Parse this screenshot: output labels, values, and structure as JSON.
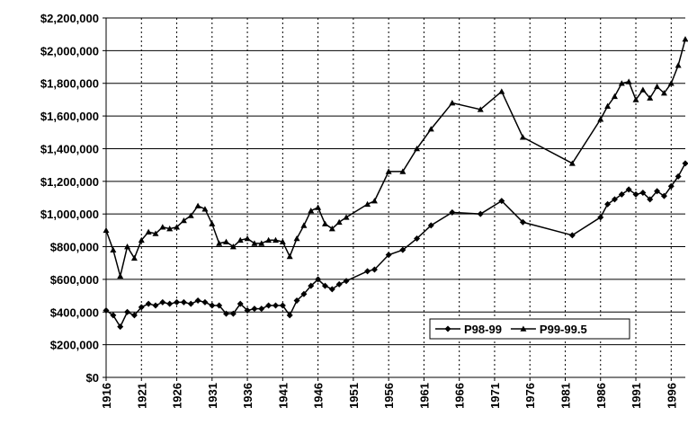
{
  "chart_data": {
    "type": "line",
    "x": [
      1916,
      1917,
      1918,
      1919,
      1920,
      1921,
      1922,
      1923,
      1924,
      1925,
      1926,
      1927,
      1928,
      1929,
      1930,
      1931,
      1932,
      1933,
      1934,
      1935,
      1936,
      1937,
      1938,
      1939,
      1940,
      1941,
      1942,
      1943,
      1944,
      1945,
      1946,
      1947,
      1948,
      1949,
      1950,
      1953,
      1954,
      1956,
      1958,
      1960,
      1962,
      1965,
      1969,
      1972,
      1975,
      1982,
      1986,
      1987,
      1988,
      1989,
      1990,
      1991,
      1992,
      1993,
      1994,
      1995,
      1996,
      1997,
      1998
    ],
    "series": [
      {
        "name": "P98-99",
        "color": "#000000",
        "marker": "diamond",
        "values": [
          410000,
          380000,
          310000,
          400000,
          380000,
          430000,
          450000,
          440000,
          460000,
          450000,
          460000,
          460000,
          450000,
          470000,
          460000,
          440000,
          440000,
          390000,
          390000,
          450000,
          410000,
          420000,
          420000,
          440000,
          440000,
          440000,
          380000,
          470000,
          510000,
          560000,
          600000,
          560000,
          540000,
          570000,
          590000,
          650000,
          660000,
          750000,
          780000,
          850000,
          930000,
          1010000,
          1000000,
          1080000,
          950000,
          870000,
          980000,
          1060000,
          1090000,
          1120000,
          1150000,
          1120000,
          1130000,
          1090000,
          1140000,
          1110000,
          1170000,
          1230000,
          1310000
        ]
      },
      {
        "name": "P99-99.5",
        "color": "#000000",
        "marker": "triangle",
        "values": [
          900000,
          780000,
          620000,
          800000,
          730000,
          840000,
          890000,
          880000,
          920000,
          910000,
          920000,
          960000,
          990000,
          1050000,
          1030000,
          940000,
          820000,
          830000,
          800000,
          840000,
          850000,
          820000,
          820000,
          840000,
          840000,
          830000,
          740000,
          850000,
          930000,
          1020000,
          1040000,
          940000,
          910000,
          950000,
          980000,
          1060000,
          1080000,
          1260000,
          1260000,
          1400000,
          1520000,
          1680000,
          1640000,
          1750000,
          1470000,
          1310000,
          1580000,
          1660000,
          1720000,
          1800000,
          1810000,
          1700000,
          1760000,
          1710000,
          1780000,
          1740000,
          1800000,
          1910000,
          2070000
        ]
      }
    ],
    "xlim": [
      1916,
      1998
    ],
    "xticks": [
      1916,
      1921,
      1926,
      1931,
      1936,
      1941,
      1946,
      1951,
      1956,
      1961,
      1966,
      1971,
      1976,
      1981,
      1986,
      1991,
      1996
    ],
    "ylim": [
      0,
      2200000
    ],
    "yticks": [
      {
        "value": 0,
        "label": "$0"
      },
      {
        "value": 200000,
        "label": "$200,000"
      },
      {
        "value": 400000,
        "label": "$400,000"
      },
      {
        "value": 600000,
        "label": "$600,000"
      },
      {
        "value": 800000,
        "label": "$800,000"
      },
      {
        "value": 1000000,
        "label": "$1,000,000"
      },
      {
        "value": 1200000,
        "label": "$1,200,000"
      },
      {
        "value": 1400000,
        "label": "$1,400,000"
      },
      {
        "value": 1600000,
        "label": "$1,600,000"
      },
      {
        "value": 1800000,
        "label": "$1,800,000"
      },
      {
        "value": 2000000,
        "label": "$2,000,000"
      },
      {
        "value": 2200000,
        "label": "$2,200,000"
      }
    ],
    "grid": true,
    "legend": "lower-right"
  }
}
